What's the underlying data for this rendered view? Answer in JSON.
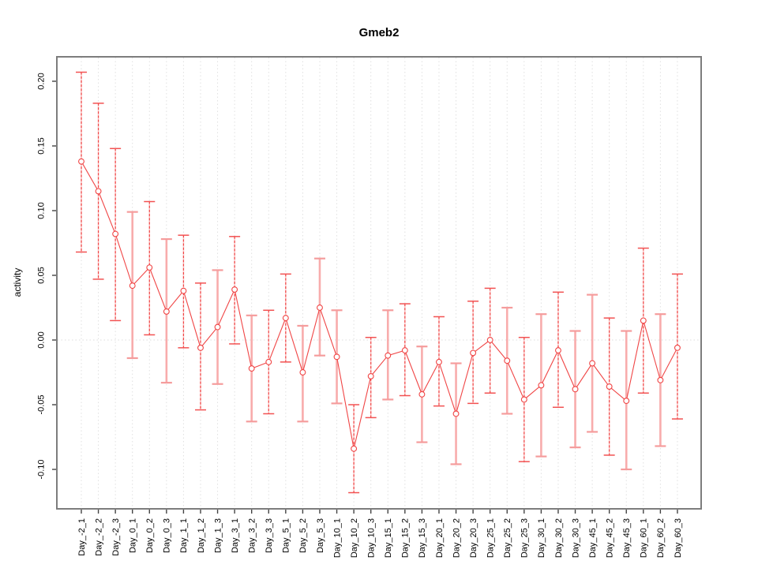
{
  "chart_data": {
    "type": "scatter",
    "title": "Gmeb2",
    "ylabel": "activity",
    "xlabel": "",
    "ylim": [
      -0.13,
      0.22
    ],
    "yticks": [
      0.2,
      0.15,
      0.1,
      0.05,
      0.0,
      -0.05,
      -0.1
    ],
    "grid": "dotted vertical gridline per category, dotted horizontal line at y=0",
    "legend": "none",
    "marker": "open-circle",
    "colors": {
      "point_line_red": "#f04545",
      "solid_errorbar_pink": "#f8acac",
      "dashed_errorbar_underlay": "#fbc6c6",
      "grid_gray": "#e0e0e0",
      "zero_line_gray": "#dcdcdc",
      "frame_gray": "#7d7d7d",
      "tick_black": "#444444",
      "background": "#ffffff"
    },
    "categories": [
      "Day_-2_1",
      "Day_-2_2",
      "Day_-2_3",
      "Day_0_1",
      "Day_0_2",
      "Day_0_3",
      "Day_1_1",
      "Day_1_2",
      "Day_1_3",
      "Day_3_1",
      "Day_3_2",
      "Day_3_3",
      "Day_5_1",
      "Day_5_2",
      "Day_5_3",
      "Day_10_1",
      "Day_10_2",
      "Day_10_3",
      "Day_15_1",
      "Day_15_2",
      "Day_15_3",
      "Day_20_1",
      "Day_20_2",
      "Day_20_3",
      "Day_25_1",
      "Day_25_2",
      "Day_25_3",
      "Day_30_1",
      "Day_30_2",
      "Day_30_3",
      "Day_45_1",
      "Day_45_2",
      "Day_45_3",
      "Day_60_1",
      "Day_60_2",
      "Day_60_3"
    ],
    "series": [
      {
        "name": "activity",
        "means": [
          0.138,
          0.115,
          0.082,
          0.042,
          0.056,
          0.022,
          0.038,
          -0.006,
          0.01,
          0.039,
          -0.022,
          -0.017,
          0.017,
          -0.025,
          0.025,
          -0.013,
          -0.084,
          -0.028,
          -0.012,
          -0.008,
          -0.042,
          -0.017,
          -0.057,
          -0.01,
          0.0,
          -0.016,
          -0.046,
          -0.035,
          -0.008,
          -0.038,
          -0.018,
          -0.036,
          -0.047,
          0.015,
          -0.031,
          -0.006
        ],
        "lower": [
          0.068,
          0.047,
          0.015,
          -0.014,
          0.004,
          -0.033,
          -0.006,
          -0.054,
          -0.034,
          -0.003,
          -0.063,
          -0.057,
          -0.017,
          -0.063,
          -0.012,
          -0.049,
          -0.118,
          -0.06,
          -0.046,
          -0.043,
          -0.079,
          -0.051,
          -0.096,
          -0.049,
          -0.041,
          -0.057,
          -0.094,
          -0.09,
          -0.052,
          -0.083,
          -0.071,
          -0.089,
          -0.1,
          -0.041,
          -0.082,
          -0.061
        ],
        "upper": [
          0.207,
          0.183,
          0.148,
          0.099,
          0.107,
          0.078,
          0.081,
          0.044,
          0.054,
          0.08,
          0.019,
          0.023,
          0.051,
          0.011,
          0.063,
          0.023,
          -0.05,
          0.002,
          0.023,
          0.028,
          -0.005,
          0.018,
          -0.018,
          0.03,
          0.04,
          0.025,
          0.002,
          0.02,
          0.037,
          0.007,
          0.035,
          0.017,
          0.007,
          0.071,
          0.02,
          0.051
        ],
        "bar_styles": [
          "dashed",
          "dashed",
          "dashed",
          "solid",
          "dashed",
          "solid",
          "dashed",
          "dashed",
          "solid",
          "dashed",
          "solid",
          "dashed",
          "dashed",
          "solid",
          "solid",
          "solid",
          "dashed",
          "dashed",
          "solid",
          "dashed",
          "solid",
          "dashed",
          "solid",
          "dashed",
          "dashed",
          "solid",
          "dashed",
          "solid",
          "dashed",
          "solid",
          "solid",
          "dashed",
          "solid",
          "dashed",
          "solid",
          "dashed"
        ]
      }
    ]
  }
}
